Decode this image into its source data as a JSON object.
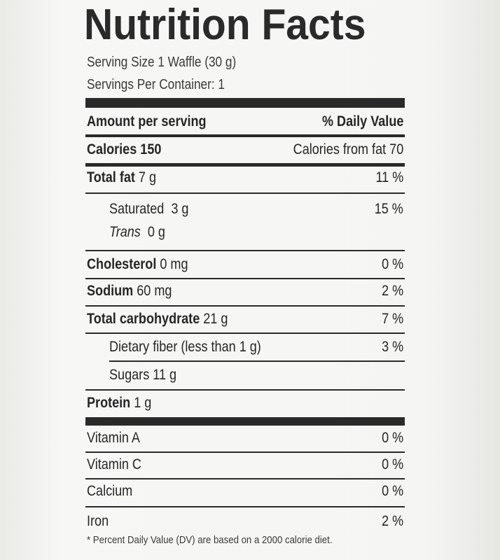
{
  "title": "Nutrition Facts",
  "serving_size": "Serving Size 1 Waffle (30 g)",
  "servings_per_container": "Servings Per Container: 1",
  "header": {
    "amount": "Amount per serving",
    "dv": "% Daily Value"
  },
  "calories": {
    "label": "Calories 150",
    "from_fat": "Calories from fat 70"
  },
  "nutrients": [
    {
      "bold": "Total fat",
      "amount": " 7 g",
      "dv": "11 %"
    },
    {
      "text": "Saturated  3 g",
      "dv": "15 %"
    },
    {
      "italic": "Trans",
      "amount": "  0 g",
      "dv": ""
    },
    {
      "bold": "Cholesterol",
      "amount": " 0 mg",
      "dv": "0 %"
    },
    {
      "bold": "Sodium",
      "amount": " 60 mg",
      "dv": "2 %"
    },
    {
      "bold": "Total carbohydrate",
      "amount": " 21 g",
      "dv": "7 %"
    },
    {
      "text": "Dietary fiber (less than 1 g)",
      "dv": "3 %"
    },
    {
      "text": "Sugars 11 g",
      "dv": ""
    },
    {
      "bold": "Protein",
      "amount": " 1 g",
      "dv": ""
    }
  ],
  "vitamins": [
    {
      "label": "Vitamin A",
      "dv": "0 %"
    },
    {
      "label": "Vitamin C",
      "dv": "0 %"
    },
    {
      "label": "Calcium",
      "dv": "0 %"
    },
    {
      "label": "Iron",
      "dv": "2 %"
    }
  ],
  "footnote": "* Percent Daily Value (DV) are based on a 2000 calorie diet."
}
